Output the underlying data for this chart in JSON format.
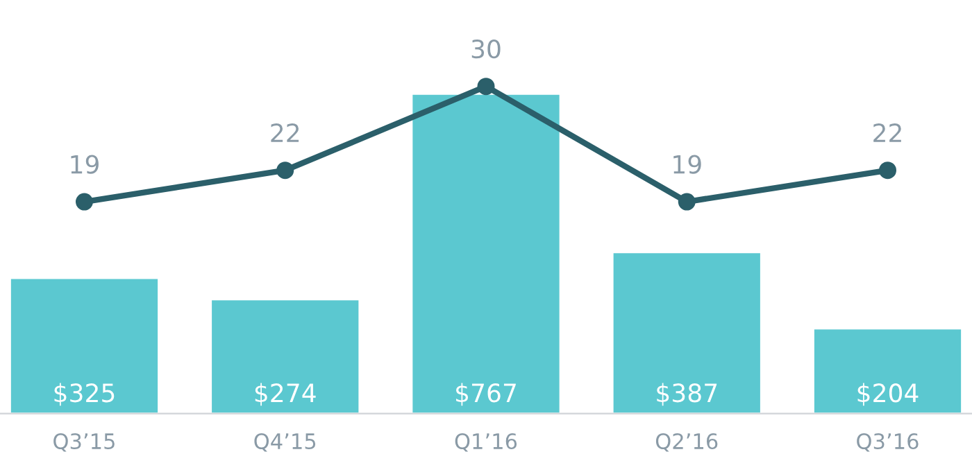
{
  "chart_data": {
    "type": "bar",
    "categories": [
      "Q3’15",
      "Q4’15",
      "Q1’16",
      "Q2’16",
      "Q3’16"
    ],
    "series": [
      {
        "color": "#5bc8d0",
        "values": [
          325,
          274,
          767,
          387,
          204
        ],
        "value_labels": [
          "$325",
          "$274",
          "$767",
          "$387",
          "$204"
        ]
      },
      {
        "type": "line",
        "axis": "y2",
        "color": "#2b5f6a",
        "marker": "circle",
        "values": [
          19,
          22,
          30,
          19,
          22
        ],
        "value_labels": [
          "19",
          "22",
          "30",
          "19",
          "22"
        ]
      }
    ],
    "grid": false,
    "legend": false
  }
}
